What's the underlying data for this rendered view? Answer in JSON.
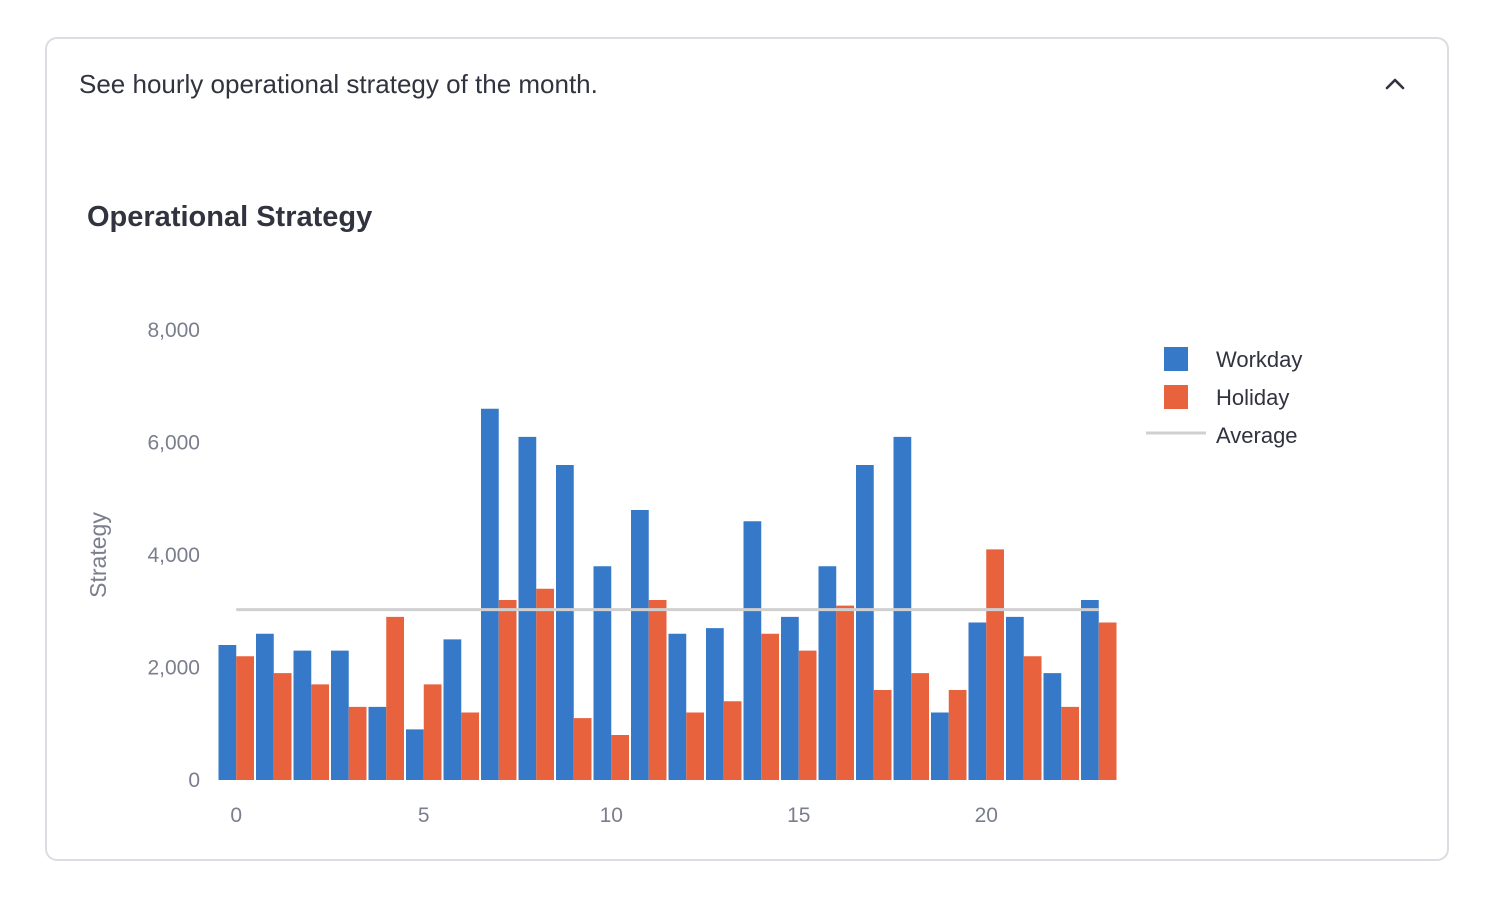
{
  "expander": {
    "header": "See hourly operational strategy of the month."
  },
  "icons": {
    "collapse": "chevron-up-icon"
  },
  "chart_data": {
    "type": "bar",
    "title": "Operational Strategy",
    "xlabel": "",
    "ylabel": "Strategy",
    "x": [
      0,
      1,
      2,
      3,
      4,
      5,
      6,
      7,
      8,
      9,
      10,
      11,
      12,
      13,
      14,
      15,
      16,
      17,
      18,
      19,
      20,
      21,
      22,
      23
    ],
    "xticks": [
      0,
      5,
      10,
      15,
      20
    ],
    "yticks": [
      0,
      2000,
      4000,
      6000,
      8000
    ],
    "ytick_labels": [
      "0",
      "2,000",
      "4,000",
      "6,000",
      "8,000"
    ],
    "ylim": [
      0,
      8000
    ],
    "grid": false,
    "legend": "top-right",
    "series": [
      {
        "name": "Workday",
        "color": "#3679c9",
        "values": [
          2400,
          2600,
          2300,
          2300,
          1300,
          900,
          2500,
          6600,
          6100,
          5600,
          3800,
          4800,
          2600,
          2700,
          4600,
          2900,
          3800,
          5600,
          6100,
          1200,
          2800,
          2900,
          1900,
          3200
        ]
      },
      {
        "name": "Holiday",
        "color": "#e8623d",
        "values": [
          2200,
          1900,
          1700,
          1300,
          2900,
          1700,
          1200,
          3200,
          3400,
          1100,
          800,
          3200,
          1200,
          1400,
          2600,
          2300,
          3100,
          1600,
          1900,
          1600,
          4100,
          2200,
          1300,
          2800
        ]
      }
    ],
    "average": {
      "name": "Average",
      "value": 3030,
      "color": "#d0d0d0"
    }
  }
}
